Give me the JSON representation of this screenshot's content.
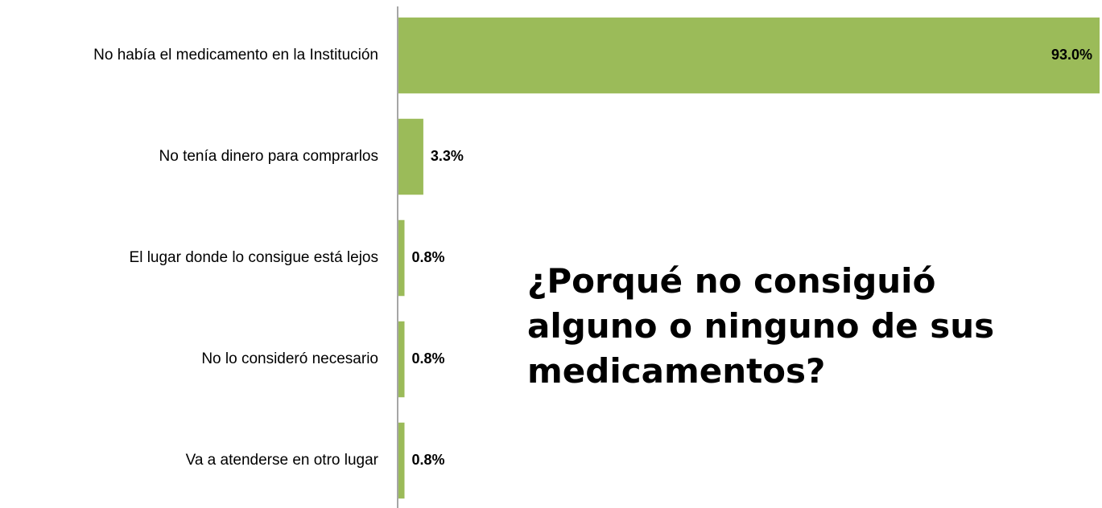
{
  "chart_data": {
    "type": "bar",
    "orientation": "horizontal",
    "title": "¿Porqué no consiguió alguno o ninguno de sus medicamentos?",
    "categories": [
      "No había el medicamento en la Institución",
      "No tenía dinero para comprarlos",
      "El lugar donde lo consigue está lejos",
      "No lo consideró necesario",
      "Va a atenderse en otro lugar"
    ],
    "values": [
      93.0,
      3.3,
      0.8,
      0.8,
      0.8
    ],
    "value_labels": [
      "93.0%",
      "3.3%",
      "0.8%",
      "0.8%",
      "0.8%"
    ],
    "color": "#9bbb59",
    "xlim": [
      0,
      93
    ]
  }
}
